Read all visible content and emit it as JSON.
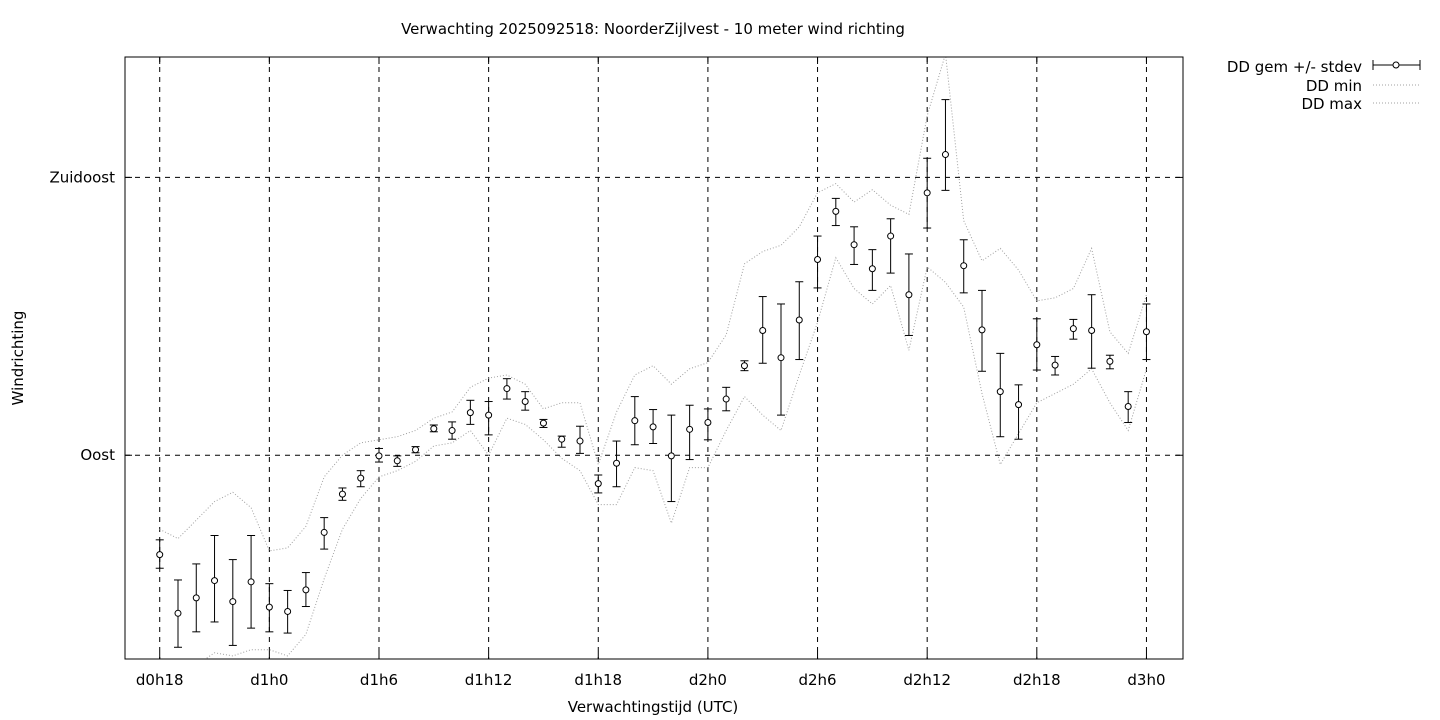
{
  "chart_data": {
    "type": "line",
    "title": "Verwachting 2025092518: NoorderZijlvest - 10 meter wind richting",
    "xlabel": "Verwachtingstijd (UTC)",
    "ylabel": "Windrichting",
    "x_unit": "hours",
    "x_ticks": [
      {
        "x": 18,
        "label": "d0h18"
      },
      {
        "x": 24,
        "label": "d1h0"
      },
      {
        "x": 30,
        "label": "d1h6"
      },
      {
        "x": 36,
        "label": "d1h12"
      },
      {
        "x": 42,
        "label": "d1h18"
      },
      {
        "x": 48,
        "label": "d2h0"
      },
      {
        "x": 54,
        "label": "d2h6"
      },
      {
        "x": 60,
        "label": "d2h12"
      },
      {
        "x": 66,
        "label": "d2h18"
      },
      {
        "x": 72,
        "label": "d3h0"
      }
    ],
    "y_ticks": [
      {
        "y": 90,
        "label": "Oost"
      },
      {
        "y": 135,
        "label": "Zuidoost"
      }
    ],
    "xlim": [
      16.1,
      74.0
    ],
    "ylim": [
      57.0,
      154.5
    ],
    "grid": true,
    "legend_position": "outside-top-right",
    "x": [
      18,
      19,
      20,
      21,
      22,
      23,
      24,
      25,
      26,
      27,
      28,
      29,
      30,
      31,
      32,
      33,
      34,
      35,
      36,
      37,
      38,
      39,
      40,
      41,
      42,
      43,
      44,
      45,
      46,
      47,
      48,
      49,
      50,
      51,
      52,
      53,
      54,
      55,
      56,
      57,
      58,
      59,
      60,
      61,
      62,
      63,
      64,
      65,
      66,
      67,
      68,
      69,
      70,
      71,
      72
    ],
    "series": [
      {
        "name": "DD gem +/- stdev",
        "style": "points-errorbars",
        "color": "#000000",
        "values": [
          73.9,
          64.4,
          66.9,
          69.7,
          66.3,
          69.5,
          65.4,
          64.7,
          68.2,
          77.5,
          83.7,
          86.3,
          89.9,
          89.1,
          90.9,
          94.3,
          94.0,
          96.9,
          96.5,
          100.8,
          98.7,
          95.2,
          92.6,
          92.3,
          85.4,
          88.7,
          95.6,
          94.6,
          89.9,
          94.2,
          95.3,
          99.1,
          104.5,
          110.2,
          105.8,
          111.9,
          121.7,
          129.5,
          124.1,
          120.2,
          125.5,
          116.0,
          132.5,
          138.7,
          120.7,
          110.3,
          100.3,
          98.2,
          107.9,
          104.6,
          110.5,
          110.2,
          105.2,
          97.9,
          110.0
        ],
        "err_low": [
          71.7,
          58.9,
          61.4,
          63.0,
          59.2,
          62.0,
          61.4,
          61.2,
          65.5,
          74.8,
          82.7,
          84.9,
          88.9,
          88.2,
          90.4,
          93.8,
          92.6,
          95.0,
          93.3,
          99.1,
          97.3,
          94.5,
          91.3,
          90.3,
          83.9,
          84.9,
          91.7,
          91.9,
          82.5,
          89.3,
          92.5,
          97.2,
          103.7,
          104.9,
          96.5,
          105.5,
          117.1,
          127.2,
          120.9,
          116.7,
          119.5,
          109.4,
          126.8,
          132.9,
          116.3,
          103.6,
          93.0,
          92.6,
          103.8,
          103.0,
          108.8,
          104.1,
          104.0,
          95.3,
          105.5
        ],
        "err_high": [
          76.3,
          69.8,
          72.4,
          77.0,
          73.1,
          77.0,
          69.2,
          68.1,
          71.0,
          79.9,
          84.7,
          87.5,
          91.1,
          89.9,
          91.4,
          94.9,
          95.4,
          98.9,
          98.7,
          102.4,
          100.3,
          95.8,
          93.1,
          94.7,
          86.8,
          92.3,
          99.5,
          97.4,
          96.5,
          98.1,
          97.5,
          101.0,
          105.3,
          115.7,
          114.5,
          118.1,
          125.5,
          131.6,
          127.0,
          123.3,
          128.3,
          122.6,
          138.1,
          147.6,
          124.9,
          116.7,
          106.5,
          101.4,
          112.1,
          106.0,
          112.0,
          116.0,
          106.2,
          100.3,
          114.5
        ]
      },
      {
        "name": "DD min",
        "style": "dotted-line",
        "color": "#a0a0a0",
        "values": [
          55.0,
          54.0,
          56.0,
          58.0,
          57.5,
          58.5,
          58.5,
          57.5,
          61.0,
          70.0,
          78.0,
          83.0,
          86.5,
          87.5,
          89.0,
          91.5,
          92.0,
          94.0,
          90.0,
          96.0,
          95.0,
          92.5,
          89.5,
          87.5,
          82.0,
          82.0,
          88.0,
          87.5,
          79.0,
          88.0,
          88.0,
          94.0,
          99.5,
          96.5,
          94.0,
          103.0,
          111.5,
          122.0,
          117.0,
          114.5,
          117.5,
          107.0,
          120.5,
          118.0,
          114.0,
          100.0,
          88.5,
          93.5,
          98.5,
          100.0,
          101.5,
          104.0,
          98.5,
          94.0,
          104.0
        ]
      },
      {
        "name": "DD max",
        "style": "dotted-line",
        "color": "#a0a0a0",
        "values": [
          78.0,
          76.5,
          79.5,
          82.5,
          84.0,
          81.5,
          74.5,
          75.0,
          78.5,
          86.5,
          90.0,
          92.0,
          92.5,
          93.0,
          94.0,
          96.0,
          97.0,
          101.0,
          102.5,
          103.0,
          101.5,
          97.5,
          98.5,
          98.5,
          88.5,
          97.0,
          103.0,
          104.5,
          101.5,
          104.0,
          105.0,
          109.5,
          121.0,
          123.0,
          124.0,
          127.0,
          132.5,
          134.0,
          131.0,
          133.0,
          130.5,
          129.0,
          145.0,
          155.0,
          128.0,
          121.5,
          123.5,
          120.0,
          115.0,
          115.5,
          117.0,
          123.5,
          110.0,
          106.5,
          116.0
        ]
      }
    ]
  }
}
